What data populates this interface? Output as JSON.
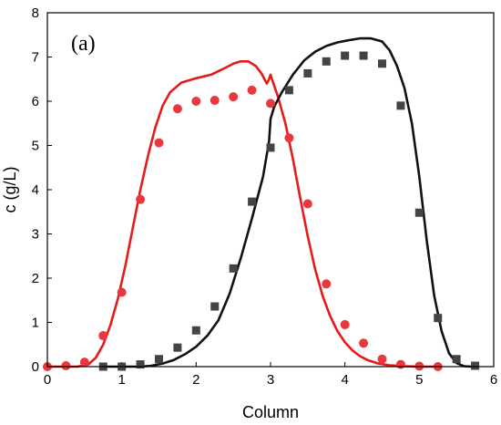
{
  "chart_data": {
    "type": "scatter",
    "panel_label": "(a)",
    "xlabel": "Column",
    "ylabel": "c (g/L)",
    "xlim": [
      0,
      6
    ],
    "ylim": [
      0,
      8
    ],
    "xticks": [
      "0",
      "1",
      "2",
      "3",
      "4",
      "5",
      "6"
    ],
    "yticks": [
      "0",
      "1",
      "2",
      "3",
      "4",
      "5",
      "6",
      "7",
      "8"
    ],
    "grid": false,
    "legend": "none",
    "series": [
      {
        "kind": "points",
        "marker": "circle",
        "color": "#e8383d",
        "x": [
          0,
          0.25,
          0.5,
          0.75,
          1.0,
          1.25,
          1.5,
          1.75,
          2.0,
          2.25,
          2.5,
          2.75,
          3.0,
          3.25,
          3.5,
          3.75,
          4.0,
          4.25,
          4.5,
          4.75,
          5.0,
          5.25
        ],
        "y": [
          0.0,
          0.02,
          0.1,
          0.7,
          1.68,
          3.78,
          5.06,
          5.83,
          6.0,
          6.02,
          6.1,
          6.25,
          5.95,
          5.17,
          3.68,
          1.87,
          0.95,
          0.53,
          0.17,
          0.05,
          0.01,
          0.0
        ]
      },
      {
        "kind": "points",
        "marker": "square",
        "color": "#444444",
        "x": [
          0.75,
          1.0,
          1.25,
          1.5,
          1.75,
          2.0,
          2.25,
          2.5,
          2.75,
          3.0,
          3.25,
          3.5,
          3.75,
          4.0,
          4.25,
          4.5,
          4.75,
          5.0,
          5.25,
          5.5,
          5.75
        ],
        "y": [
          0.0,
          0.0,
          0.05,
          0.17,
          0.43,
          0.82,
          1.36,
          2.22,
          3.73,
          4.95,
          6.25,
          6.63,
          6.9,
          7.03,
          7.03,
          6.85,
          5.9,
          3.48,
          1.1,
          0.17,
          0.02
        ]
      },
      {
        "kind": "line",
        "color": "#e8191b",
        "x": [
          0,
          0.4,
          0.55,
          0.65,
          0.75,
          0.85,
          0.95,
          1.05,
          1.15,
          1.25,
          1.35,
          1.45,
          1.55,
          1.65,
          1.8,
          2.0,
          2.2,
          2.35,
          2.5,
          2.6,
          2.7,
          2.8,
          2.88,
          2.95,
          2.98,
          3.0,
          3.03,
          3.1,
          3.2,
          3.3,
          3.4,
          3.5,
          3.6,
          3.7,
          3.8,
          3.9,
          4.0,
          4.1,
          4.2,
          4.3,
          4.45,
          4.6,
          4.8,
          5.0,
          5.2
        ],
        "y": [
          0,
          0.0,
          0.05,
          0.2,
          0.5,
          0.95,
          1.55,
          2.3,
          3.15,
          4.0,
          4.75,
          5.4,
          5.9,
          6.2,
          6.42,
          6.52,
          6.6,
          6.72,
          6.85,
          6.9,
          6.9,
          6.8,
          6.62,
          6.4,
          6.5,
          6.6,
          6.45,
          6.1,
          5.5,
          4.7,
          3.8,
          2.95,
          2.2,
          1.6,
          1.15,
          0.8,
          0.55,
          0.37,
          0.24,
          0.15,
          0.07,
          0.03,
          0.01,
          0.0,
          0.0
        ]
      },
      {
        "kind": "line",
        "color": "#111111",
        "x": [
          0.75,
          1.25,
          1.4,
          1.55,
          1.7,
          1.85,
          2.0,
          2.15,
          2.3,
          2.45,
          2.6,
          2.75,
          2.9,
          2.98,
          3.0,
          3.05,
          3.15,
          3.3,
          3.45,
          3.6,
          3.75,
          3.9,
          4.05,
          4.2,
          4.35,
          4.5,
          4.6,
          4.7,
          4.8,
          4.9,
          5.0,
          5.1,
          5.2,
          5.3,
          5.4,
          5.5,
          5.6,
          5.7
        ],
        "y": [
          0.0,
          0.0,
          0.02,
          0.07,
          0.15,
          0.28,
          0.45,
          0.7,
          1.05,
          1.65,
          2.45,
          3.35,
          4.3,
          5.1,
          5.6,
          5.88,
          6.2,
          6.6,
          6.92,
          7.12,
          7.25,
          7.33,
          7.38,
          7.42,
          7.42,
          7.35,
          7.15,
          6.8,
          6.3,
          5.5,
          4.3,
          2.85,
          1.6,
          0.8,
          0.3,
          0.08,
          0.01,
          0.0
        ]
      }
    ]
  }
}
